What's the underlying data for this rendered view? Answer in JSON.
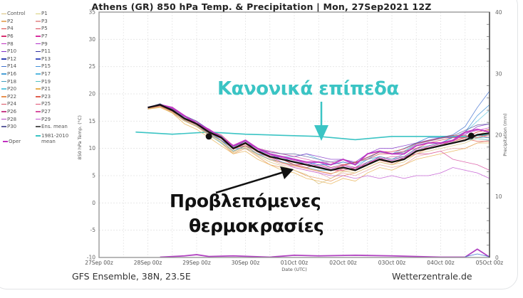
{
  "header": {
    "title": "Athens  (GR)  850 hPa Temp. & Precipitation | Mon, 27Sep2021 12Z"
  },
  "legend": {
    "items": [
      {
        "label": "Control",
        "color": "#d8c07a"
      },
      {
        "label": "P1",
        "color": "#d8d07a"
      },
      {
        "label": "P2",
        "color": "#e8b070"
      },
      {
        "label": "P3",
        "color": "#e8a0a0"
      },
      {
        "label": "P4",
        "color": "#d84040"
      },
      {
        "label": "P5",
        "color": "#d84050"
      },
      {
        "label": "P6",
        "color": "#d83070"
      },
      {
        "label": "P7",
        "color": "#d830a0"
      },
      {
        "label": "P8",
        "color": "#c030c0"
      },
      {
        "label": "P9",
        "color": "#b030c8"
      },
      {
        "label": "P10",
        "color": "#8030c8"
      },
      {
        "label": "P11",
        "color": "#3030a0"
      },
      {
        "label": "P12",
        "color": "#3040b0"
      },
      {
        "label": "P13",
        "color": "#4050c0"
      },
      {
        "label": "P14",
        "color": "#4070d0"
      },
      {
        "label": "P15",
        "color": "#4090d8"
      },
      {
        "label": "P16",
        "color": "#4aa0d8"
      },
      {
        "label": "P17",
        "color": "#58b8e0"
      },
      {
        "label": "P18",
        "color": "#40a0c0"
      },
      {
        "label": "P19",
        "color": "#50c0c0"
      },
      {
        "label": "P20",
        "color": "#60c8e0"
      },
      {
        "label": "P21",
        "color": "#e8b050"
      },
      {
        "label": "P22",
        "color": "#e89050"
      },
      {
        "label": "P23",
        "color": "#e06050"
      },
      {
        "label": "P24",
        "color": "#d85060"
      },
      {
        "label": "P25",
        "color": "#e05070"
      },
      {
        "label": "P26",
        "color": "#c8408a"
      },
      {
        "label": "P27",
        "color": "#d850a0"
      },
      {
        "label": "P28",
        "color": "#b040c0"
      },
      {
        "label": "P29",
        "color": "#c050d0"
      },
      {
        "label": "P30",
        "color": "#6060a0"
      },
      {
        "label": "Ens. mean",
        "color": "#555555"
      }
    ],
    "oper": {
      "label": "Oper",
      "color": "#c030c0"
    },
    "clim": {
      "label_line1": "1981-2010",
      "label_line2": "mean",
      "color": "#3bc4c4"
    }
  },
  "annotations": {
    "normal_levels": "Κανονικά επίπεδα",
    "forecast_line1": "Προβλεπόμενες",
    "forecast_line2": "θερμοκρασίες"
  },
  "footer": {
    "source": "GFS Ensemble, 38N, 23.5E",
    "site": "Wetterzentrale.de"
  },
  "chart_data": {
    "type": "line",
    "title": "Athens  (GR)  850 hPa Temp. & Precipitation | Mon, 27Sep2021 12Z",
    "xlabel": "Date (UTC)",
    "ylabel": "850 hPa Temp. (°C)",
    "y2label": "Precipitation (mm)",
    "ylim": [
      -10,
      35
    ],
    "y2lim": [
      0,
      40
    ],
    "yticks": [
      "35",
      "30",
      "25",
      "20",
      "15",
      "10",
      "5",
      "0",
      "-5",
      "-10"
    ],
    "y2ticks": [
      "40",
      "30",
      "20",
      "10",
      "0"
    ],
    "xticks": [
      "27Sep 00z",
      "28Sep 00z",
      "29Sep 00z",
      "30Sep 00z",
      "01Oct 00z",
      "02Oct 00z",
      "03Oct 00z",
      "04Oct 00z",
      "05Oct 00z"
    ],
    "grid": true,
    "x_hours": [
      24,
      30,
      36,
      42,
      48,
      54,
      60,
      66,
      72,
      78,
      84,
      90,
      96,
      102,
      108,
      114,
      120,
      126,
      132,
      138,
      144,
      150,
      156,
      162,
      168,
      174,
      180,
      186,
      192
    ],
    "series": [
      {
        "name": "Ens. mean",
        "color": "#111111",
        "width": 2.2,
        "values": [
          17.5,
          18,
          17,
          15.5,
          14.5,
          13,
          12,
          10,
          11,
          9.5,
          8.5,
          8,
          7.5,
          7,
          6.5,
          6,
          6.5,
          6,
          7,
          8,
          7.5,
          8,
          9.5,
          10,
          10.5,
          11,
          11.5,
          12.5,
          12.8
        ]
      },
      {
        "name": "Oper",
        "color": "#c030c0",
        "width": 2,
        "values": [
          17.5,
          18,
          17.5,
          16,
          14.5,
          13.5,
          12,
          10.5,
          11.5,
          10,
          9,
          8.5,
          8,
          7.5,
          7.5,
          7,
          8,
          7,
          9,
          9.5,
          9,
          9,
          10.5,
          11,
          11,
          11.5,
          13,
          13.5,
          13
        ]
      },
      {
        "name": "P1",
        "color": "#e8a0a0",
        "width": 0.8,
        "values": [
          17.2,
          17.8,
          16.5,
          15,
          14,
          12.5,
          11.5,
          9.5,
          10.5,
          9,
          8,
          7,
          6.5,
          6,
          5.5,
          4.5,
          5.5,
          5,
          6,
          7,
          6.5,
          7,
          8.5,
          9,
          9.5,
          10,
          10,
          11,
          11.5
        ]
      },
      {
        "name": "P2",
        "color": "#4090d8",
        "width": 0.8,
        "values": [
          17.5,
          18.2,
          17,
          15.8,
          14.5,
          13,
          11.5,
          10,
          10,
          9,
          8.5,
          8.5,
          8,
          7,
          7.5,
          6.5,
          7,
          6.5,
          8,
          8.5,
          8,
          9,
          10.5,
          11,
          11,
          12,
          13,
          16,
          18
        ]
      },
      {
        "name": "P3",
        "color": "#e89050",
        "width": 0.8,
        "values": [
          17.3,
          17.7,
          16.5,
          15.2,
          14,
          12.5,
          11,
          9,
          10,
          8.5,
          7,
          6.5,
          6,
          5,
          4.5,
          4,
          5,
          5.5,
          6.5,
          7.5,
          7,
          8,
          9,
          10,
          10.5,
          11.5,
          12,
          13,
          13.5
        ]
      },
      {
        "name": "P4",
        "color": "#d83070",
        "width": 0.8,
        "values": [
          17.5,
          18,
          17.2,
          15.5,
          14.8,
          13.2,
          12.5,
          10.5,
          11,
          10,
          9,
          8,
          7,
          7,
          6.5,
          6,
          6,
          6.5,
          7,
          8.5,
          8,
          8.5,
          10,
          10.5,
          11,
          11.5,
          12,
          12.5,
          12
        ]
      },
      {
        "name": "P5",
        "color": "#60c8e0",
        "width": 0.8,
        "values": [
          17.4,
          17.9,
          16.8,
          15,
          14.2,
          12.5,
          11,
          9.5,
          10.5,
          9.5,
          9,
          8.5,
          8.5,
          9,
          8,
          7,
          7.5,
          7,
          8,
          9.5,
          9,
          9.5,
          11,
          11.5,
          12,
          12,
          13,
          15,
          17
        ]
      },
      {
        "name": "P6",
        "color": "#8030c8",
        "width": 0.8,
        "values": [
          17.6,
          18.1,
          17.5,
          16,
          15,
          13.5,
          12,
          10,
          11,
          9.5,
          9.5,
          9,
          8.5,
          9,
          8.5,
          8,
          8,
          7.5,
          9,
          10,
          10,
          10.5,
          11,
          11.5,
          12,
          12,
          12.5,
          14,
          14.5
        ]
      },
      {
        "name": "P7",
        "color": "#e8b050",
        "width": 0.8,
        "values": [
          17.2,
          17.5,
          16.5,
          14.5,
          13.5,
          12,
          10.5,
          9,
          9.5,
          8,
          7,
          6,
          5.5,
          4.5,
          4,
          3.5,
          4.5,
          4,
          5.5,
          6.5,
          6,
          7,
          8,
          8.5,
          9,
          9.5,
          10,
          11,
          11
        ]
      },
      {
        "name": "P8",
        "color": "#d850a0",
        "width": 0.8,
        "values": [
          17.5,
          18,
          17,
          15.5,
          14.5,
          13,
          12,
          10.5,
          11.5,
          10,
          9.5,
          9,
          8.5,
          8,
          7.5,
          7.5,
          7,
          6.5,
          7.5,
          8,
          8.5,
          8.5,
          9,
          9,
          9.5,
          8,
          7.5,
          7,
          6
        ]
      },
      {
        "name": "P9",
        "color": "#c050d0",
        "width": 0.8,
        "values": [
          17.5,
          18,
          17.3,
          16,
          14.8,
          13.5,
          12.2,
          10.5,
          11,
          9.5,
          8.5,
          7.5,
          6.5,
          6,
          5.5,
          5,
          5,
          4.5,
          5,
          4.5,
          5,
          4.5,
          5,
          5,
          5.5,
          6.5,
          6,
          5.5,
          4.5
        ]
      },
      {
        "name": "P10",
        "color": "#40a0c0",
        "width": 0.8,
        "values": [
          17.4,
          17.9,
          17,
          15.2,
          14,
          12.8,
          11.5,
          9.5,
          10.5,
          9,
          8,
          7.5,
          7,
          6.5,
          6,
          6,
          6.5,
          6,
          7.5,
          8.5,
          8,
          8.5,
          10,
          10.5,
          11,
          12,
          12,
          12,
          12
        ]
      },
      {
        "name": "P11",
        "color": "#d84050",
        "width": 0.8,
        "values": [
          17.5,
          18,
          17,
          15.5,
          14.5,
          13,
          12,
          10,
          10.5,
          9.5,
          8.5,
          8,
          7,
          6.5,
          7,
          6.5,
          7,
          7.5,
          8,
          9,
          9,
          9.5,
          10,
          11,
          11.5,
          12,
          12,
          13,
          13.5
        ]
      },
      {
        "name": "P12",
        "color": "#4070d0",
        "width": 0.8,
        "values": [
          17.4,
          17.8,
          16.8,
          15.5,
          14.5,
          12.5,
          11.5,
          10,
          11,
          10,
          9,
          8,
          8,
          7.5,
          7,
          7,
          7.5,
          7,
          9,
          9.5,
          9,
          10,
          11,
          12,
          12,
          12.5,
          14,
          17.5,
          20.5
        ]
      },
      {
        "name": "P13",
        "color": "#e06050",
        "width": 0.8,
        "values": [
          17.3,
          17.9,
          16.9,
          15.3,
          14.3,
          12.8,
          11.8,
          9.8,
          10.8,
          9.3,
          8.3,
          7.3,
          6.8,
          6.3,
          5.8,
          5.3,
          6.3,
          6.3,
          7.3,
          7.8,
          7.3,
          8.3,
          9.3,
          10.3,
          10.8,
          11.3,
          11.8,
          11.3,
          11.3
        ]
      },
      {
        "name": "P14",
        "color": "#c030c0",
        "width": 0.8,
        "values": [
          17.5,
          18.1,
          17.3,
          15.8,
          14.8,
          13.3,
          12.3,
          10.3,
          11.3,
          9.8,
          8.8,
          8.3,
          7.8,
          7.3,
          6.8,
          6.3,
          6.8,
          6.3,
          7.3,
          8.3,
          7.8,
          8.3,
          9.8,
          10.3,
          10.8,
          11.3,
          12.8,
          13.3,
          13.8
        ]
      },
      {
        "name": "P15",
        "color": "#50c0c0",
        "width": 0.8,
        "values": [
          17.5,
          18,
          17,
          15.5,
          14.5,
          13,
          12,
          10,
          11,
          9.5,
          8.5,
          8,
          7.5,
          7,
          6.5,
          6,
          6.5,
          6,
          7,
          8,
          7.5,
          8,
          9.5,
          10,
          10.5,
          11,
          11.5,
          11.8,
          11.5
        ]
      },
      {
        "name": "P16",
        "color": "#d8c07a",
        "width": 0.8,
        "values": [
          17.2,
          17.6,
          16.6,
          15,
          14,
          12.4,
          11.2,
          9.2,
          10.2,
          8.7,
          7.5,
          6.8,
          6,
          5.2,
          3.5,
          4.5,
          5.8,
          5.5,
          6.5,
          7.5,
          7,
          7.5,
          9,
          9.5,
          10,
          10.5,
          11,
          12,
          12.5
        ]
      },
      {
        "name": "P17",
        "color": "#6060a0",
        "width": 0.8,
        "values": [
          17.5,
          18.2,
          17.2,
          16,
          15,
          13.3,
          12.3,
          10.3,
          11.3,
          10,
          9.3,
          9,
          9,
          8.5,
          8,
          7.5,
          8,
          7.3,
          8.3,
          9.3,
          9,
          9.3,
          10.8,
          11.3,
          11.8,
          12.3,
          13.3,
          14.3,
          14.5
        ]
      },
      {
        "name": "P18",
        "color": "#d84040",
        "width": 0.8,
        "values": [
          17.4,
          17.8,
          16.8,
          15.4,
          14.4,
          12.9,
          11.9,
          9.9,
          10.9,
          9.4,
          8.4,
          7.9,
          7.4,
          6.9,
          6.4,
          5.9,
          6.9,
          7.4,
          8.4,
          9.4,
          9.4,
          9.9,
          10.9,
          11.4,
          11.9,
          12.4,
          12.4,
          12,
          12.5
        ]
      },
      {
        "name": "P19",
        "color": "#e8b070",
        "width": 0.8,
        "values": [
          17.3,
          17.7,
          16.7,
          15.1,
          14.1,
          12.6,
          11.4,
          9.4,
          10.4,
          8.9,
          7.9,
          7.4,
          6.9,
          6.4,
          5.9,
          5.4,
          5.9,
          5.9,
          6.9,
          7.9,
          7.4,
          7.9,
          9.4,
          9.9,
          10.4,
          10.9,
          11.4,
          12.4,
          13.4
        ]
      }
    ],
    "climatology": {
      "name": "1981-2010 mean",
      "color": "#3bc4c4",
      "x_hours": [
        18,
        36,
        54,
        72,
        90,
        108,
        126,
        144,
        162,
        180,
        192
      ],
      "values": [
        13,
        12.6,
        13,
        12.6,
        12.4,
        12.2,
        11.6,
        12.2,
        12.2,
        12.2,
        12.5
      ]
    },
    "markers": [
      {
        "x_hour": 54,
        "value": 12.2
      },
      {
        "x_hour": 183,
        "value": 12.3
      }
    ],
    "precipitation": {
      "x_hours": [
        30,
        42,
        48,
        54,
        66,
        84,
        96,
        108,
        126,
        144,
        168,
        180,
        186,
        192
      ],
      "values": [
        0,
        0.2,
        0.4,
        0.1,
        0.2,
        0,
        0.3,
        0.2,
        0.3,
        0.2,
        0,
        0,
        1.3,
        0
      ]
    }
  }
}
